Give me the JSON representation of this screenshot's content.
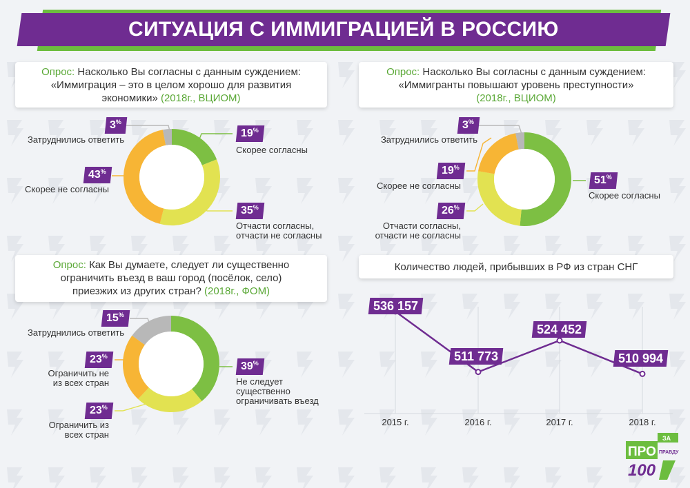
{
  "title": "СИТУАЦИЯ С ИММИГРАЦИЕЙ В РОССИЮ",
  "colors": {
    "purple": "#6f2c91",
    "green": "#7dbf43",
    "yellow": "#e2e251",
    "orange": "#f7b535",
    "gray": "#b8b8b8"
  },
  "chart_data": [
    {
      "type": "pie",
      "title_prefix": "Опрос:",
      "question": "Насколько Вы согласны с данным суждением: «Иммиграция – это в целом хорошо для развития экономики»",
      "question_lines": [
        "Насколько Вы согласны с данным суждением:",
        "«Иммиграция – это в целом хорошо для развития",
        "экономики»"
      ],
      "source": "(2018г., ВЦИОМ)",
      "categories": [
        "Скорее согласны",
        "Отчасти согласны, отчасти не согласны",
        "Скорее не согласны",
        "Затруднились ответить"
      ],
      "label_lines": [
        [
          "Скорее согласны"
        ],
        [
          "Отчасти согласны,",
          "отчасти не согласны"
        ],
        [
          "Скорее не согласны"
        ],
        [
          "Затруднились ответить"
        ]
      ],
      "values": [
        19,
        35,
        43,
        3
      ],
      "value_labels": [
        "19",
        "35",
        "43",
        "3"
      ],
      "slice_colors": [
        "#7dbf43",
        "#e2e251",
        "#f7b535",
        "#b8b8b8"
      ]
    },
    {
      "type": "pie",
      "title_prefix": "Опрос:",
      "question": "Насколько Вы согласны с данным суждением: «Иммигранты повышают уровень преступности»",
      "question_lines": [
        "Насколько Вы согласны с данным суждением:",
        "«Иммигранты повышают уровень преступности»"
      ],
      "source": "(2018г., ВЦИОМ)",
      "categories": [
        "Скорее согласны",
        "Отчасти согласны, отчасти не согласны",
        "Скорее не согласны",
        "Затруднились ответить"
      ],
      "label_lines": [
        [
          "Скорее согласны"
        ],
        [
          "Отчасти согласны,",
          "отчасти не согласны"
        ],
        [
          "Скорее не согласны"
        ],
        [
          "Затруднились ответить"
        ]
      ],
      "values": [
        51,
        26,
        19,
        3
      ],
      "value_labels": [
        "51",
        "26",
        "19",
        "3"
      ],
      "slice_colors": [
        "#7dbf43",
        "#e2e251",
        "#f7b535",
        "#b8b8b8"
      ]
    },
    {
      "type": "pie",
      "title_prefix": "Опрос:",
      "question": "Как Вы думаете, следует ли существенно ограничить въезд в ваш город (посёлок, село) приезжих из других стран?",
      "question_lines": [
        "Как Вы думаете, следует ли существенно",
        "ограничить въезд в ваш город (посёлок, село)",
        "приезжих из других стран?"
      ],
      "source": "(2018г., ФОМ)",
      "categories": [
        "Не следует существенно ограничивать въезд",
        "Ограничить из всех стран",
        "Ограничить не из всех стран",
        "Затруднились ответить"
      ],
      "label_lines": [
        [
          "Не следует",
          "существенно",
          "ограничивать въезд"
        ],
        [
          "Ограничить из",
          "всех стран"
        ],
        [
          "Ограничить не",
          "из всех стран"
        ],
        [
          "Затруднились ответить"
        ]
      ],
      "values": [
        39,
        23,
        23,
        15
      ],
      "value_labels": [
        "39",
        "23",
        "23",
        "15"
      ],
      "slice_colors": [
        "#7dbf43",
        "#e2e251",
        "#f7b535",
        "#b8b8b8"
      ]
    },
    {
      "type": "line",
      "title": "Количество людей, прибывших в РФ из стран СНГ",
      "x": [
        "2015 г.",
        "2016 г.",
        "2017 г.",
        "2018 г."
      ],
      "values": [
        536157,
        511773,
        524452,
        510994
      ],
      "value_labels": [
        "536 157",
        "511 773",
        "524 452",
        "510 994"
      ],
      "ylim": [
        495000,
        545000
      ]
    }
  ],
  "logo": {
    "main": "ПРО",
    "suffix": "100",
    "za": "ЗА",
    "pravdu": "ПРАВДУ"
  }
}
